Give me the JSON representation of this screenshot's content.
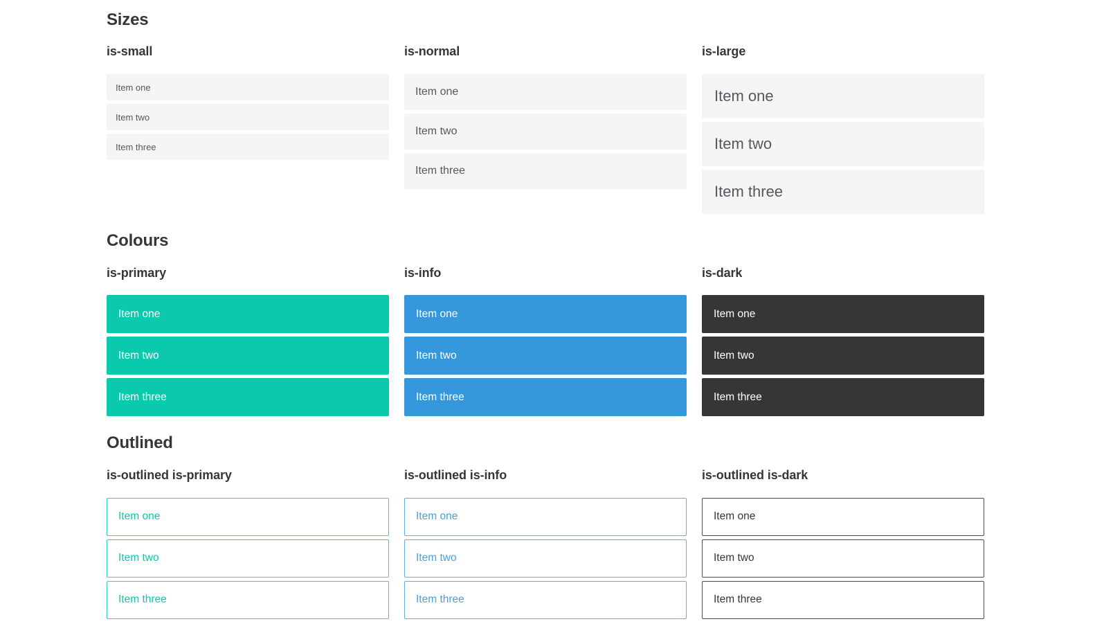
{
  "colors": {
    "primary": "#0bc9ac",
    "info": "#3598dc",
    "dark": "#363636",
    "item_background": "#f5f5f5",
    "heading_text": "#363636",
    "item_text": "#55585c"
  },
  "sections": [
    {
      "title": "Sizes",
      "groups": [
        {
          "heading": "is-small",
          "items": [
            "Item one",
            "Item two",
            "Item three"
          ]
        },
        {
          "heading": "is-normal",
          "items": [
            "Item one",
            "Item two",
            "Item three"
          ]
        },
        {
          "heading": "is-large",
          "items": [
            "Item one",
            "Item two",
            "Item three"
          ]
        }
      ]
    },
    {
      "title": "Colours",
      "groups": [
        {
          "heading": "is-primary",
          "items": [
            "Item one",
            "Item two",
            "Item three"
          ]
        },
        {
          "heading": "is-info",
          "items": [
            "Item one",
            "Item two",
            "Item three"
          ]
        },
        {
          "heading": "is-dark",
          "items": [
            "Item one",
            "Item two",
            "Item three"
          ]
        }
      ]
    },
    {
      "title": "Outlined",
      "groups": [
        {
          "heading": "is-outlined is-primary",
          "items": [
            "Item one",
            "Item two",
            "Item three"
          ]
        },
        {
          "heading": "is-outlined is-info",
          "items": [
            "Item one",
            "Item two",
            "Item three"
          ]
        },
        {
          "heading": "is-outlined is-dark",
          "items": [
            "Item one",
            "Item two",
            "Item three"
          ]
        }
      ]
    }
  ]
}
